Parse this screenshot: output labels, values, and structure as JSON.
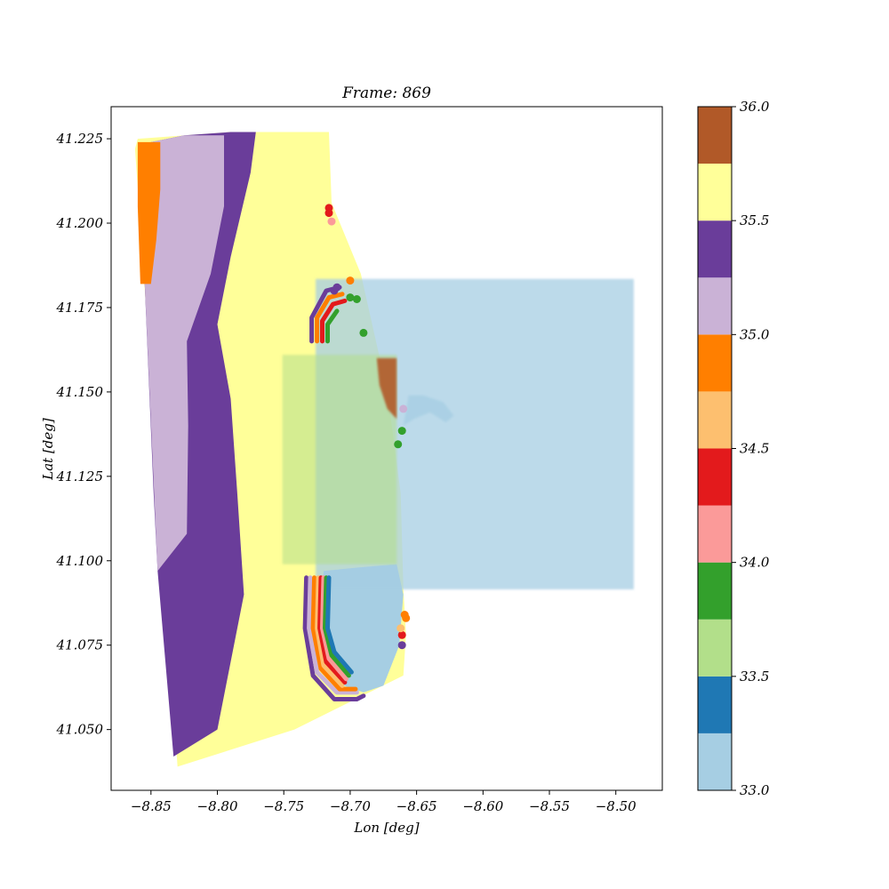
{
  "chart_data": {
    "type": "scatter",
    "title": "Frame: 869",
    "xlabel": "Lon [deg]",
    "ylabel": "Lat [deg]",
    "xlim": [
      -8.88,
      -8.465
    ],
    "ylim": [
      41.032,
      41.2345
    ],
    "x_ticks": [
      -8.85,
      -8.8,
      -8.75,
      -8.7,
      -8.65,
      -8.6,
      -8.55,
      -8.5
    ],
    "x_tick_labels": [
      "−8.85",
      "−8.80",
      "−8.75",
      "−8.70",
      "−8.65",
      "−8.60",
      "−8.55",
      "−8.50"
    ],
    "y_ticks": [
      41.05,
      41.075,
      41.1,
      41.125,
      41.15,
      41.175,
      41.2,
      41.225
    ],
    "y_tick_labels": [
      "41.050",
      "41.075",
      "41.100",
      "41.125",
      "41.150",
      "41.175",
      "41.200",
      "41.225"
    ],
    "grid": false,
    "colormap": "Paired",
    "colorbar": {
      "min": 33.0,
      "max": 36.0,
      "ticks": [
        33.0,
        33.5,
        34.0,
        34.5,
        35.0,
        35.5,
        36.0
      ],
      "tick_labels": [
        "33.0",
        "33.5",
        "34.0",
        "34.5",
        "35.0",
        "35.5",
        "36.0"
      ],
      "bins": [
        {
          "from": 33.0,
          "to": 33.25,
          "color": "#a6cee3"
        },
        {
          "from": 33.25,
          "to": 33.5,
          "color": "#1f78b4"
        },
        {
          "from": 33.5,
          "to": 33.75,
          "color": "#b2df8a"
        },
        {
          "from": 33.75,
          "to": 34.0,
          "color": "#33a02c"
        },
        {
          "from": 34.0,
          "to": 34.25,
          "color": "#fb9a99"
        },
        {
          "from": 34.25,
          "to": 34.5,
          "color": "#e31a1c"
        },
        {
          "from": 34.5,
          "to": 34.75,
          "color": "#fdbf6f"
        },
        {
          "from": 34.75,
          "to": 35.0,
          "color": "#ff7f00"
        },
        {
          "from": 35.0,
          "to": 35.25,
          "color": "#cab2d6"
        },
        {
          "from": 35.25,
          "to": 35.5,
          "color": "#6a3d9a"
        },
        {
          "from": 35.5,
          "to": 35.75,
          "color": "#ffff99"
        },
        {
          "from": 35.75,
          "to": 36.0,
          "color": "#b15928"
        }
      ]
    },
    "regions": [
      {
        "name": "offshore-yellow",
        "value": 35.6,
        "points": [
          [
            -8.83,
            41.039
          ],
          [
            -8.742,
            41.05
          ],
          [
            -8.66,
            41.066
          ],
          [
            -8.658,
            41.078
          ],
          [
            -8.66,
            41.092
          ],
          [
            -8.662,
            41.12
          ],
          [
            -8.672,
            41.15
          ],
          [
            -8.692,
            41.185
          ],
          [
            -8.714,
            41.206
          ],
          [
            -8.716,
            41.227
          ],
          [
            -8.79,
            41.227
          ],
          [
            -8.86,
            41.225
          ],
          [
            -8.862,
            41.222
          ]
        ]
      },
      {
        "name": "purple-band",
        "value": 35.4,
        "points": [
          [
            -8.833,
            41.042
          ],
          [
            -8.8,
            41.05
          ],
          [
            -8.78,
            41.09
          ],
          [
            -8.785,
            41.12
          ],
          [
            -8.79,
            41.148
          ],
          [
            -8.8,
            41.17
          ],
          [
            -8.79,
            41.19
          ],
          [
            -8.775,
            41.215
          ],
          [
            -8.771,
            41.227
          ],
          [
            -8.79,
            41.227
          ],
          [
            -8.825,
            41.226
          ],
          [
            -8.85,
            41.224
          ],
          [
            -8.858,
            41.222
          ],
          [
            -8.855,
            41.185
          ],
          [
            -8.848,
            41.12
          ],
          [
            -8.845,
            41.097
          ]
        ]
      },
      {
        "name": "lilac-band",
        "value": 35.1,
        "points": [
          [
            -8.845,
            41.097
          ],
          [
            -8.823,
            41.108
          ],
          [
            -8.822,
            41.14
          ],
          [
            -8.823,
            41.165
          ],
          [
            -8.805,
            41.185
          ],
          [
            -8.795,
            41.205
          ],
          [
            -8.795,
            41.226
          ],
          [
            -8.825,
            41.226
          ],
          [
            -8.85,
            41.224
          ],
          [
            -8.858,
            41.222
          ],
          [
            -8.855,
            41.185
          ]
        ]
      },
      {
        "name": "orange-band",
        "value": 34.9,
        "points": [
          [
            -8.858,
            41.182
          ],
          [
            -8.85,
            41.182
          ],
          [
            -8.846,
            41.195
          ],
          [
            -8.843,
            41.21
          ],
          [
            -8.843,
            41.224
          ],
          [
            -8.86,
            41.224
          ],
          [
            -8.86,
            41.205
          ]
        ]
      },
      {
        "name": "estuary-fresh",
        "value": 33.1,
        "points": [
          [
            -8.72,
            41.097
          ],
          [
            -8.694,
            41.098
          ],
          [
            -8.665,
            41.099
          ],
          [
            -8.66,
            41.09
          ],
          [
            -8.663,
            41.075
          ],
          [
            -8.675,
            41.063
          ],
          [
            -8.69,
            41.061
          ],
          [
            -8.705,
            41.063
          ],
          [
            -8.715,
            41.066
          ],
          [
            -8.722,
            41.077
          ]
        ]
      },
      {
        "name": "river-plume-box",
        "value": 33.1,
        "opacity": 0.75,
        "points": [
          [
            -8.726,
            41.0915
          ],
          [
            -8.4865,
            41.0915
          ],
          [
            -8.4865,
            41.1835
          ],
          [
            -8.726,
            41.1835
          ]
        ]
      },
      {
        "name": "nearshore-box",
        "value": 33.6,
        "opacity": 0.55,
        "points": [
          [
            -8.751,
            41.099
          ],
          [
            -8.665,
            41.099
          ],
          [
            -8.665,
            41.161
          ],
          [
            -8.751,
            41.161
          ]
        ]
      },
      {
        "name": "brown-patch",
        "value": 35.9,
        "opacity": 0.9,
        "points": [
          [
            -8.68,
            41.16
          ],
          [
            -8.665,
            41.16
          ],
          [
            -8.665,
            41.142
          ],
          [
            -8.672,
            41.145
          ],
          [
            -8.678,
            41.152
          ]
        ]
      },
      {
        "name": "river-channel",
        "value": 33.1,
        "opacity": 0.8,
        "points": [
          [
            -8.656,
            41.149
          ],
          [
            -8.645,
            41.149
          ],
          [
            -8.63,
            41.147
          ],
          [
            -8.622,
            41.143
          ],
          [
            -8.628,
            41.141
          ],
          [
            -8.64,
            41.144
          ],
          [
            -8.652,
            41.142
          ],
          [
            -8.66,
            41.14
          ]
        ]
      }
    ],
    "fronts": [
      {
        "value": 35.4,
        "points": [
          [
            -8.733,
            41.095
          ],
          [
            -8.734,
            41.08
          ],
          [
            -8.728,
            41.066
          ],
          [
            -8.712,
            41.059
          ],
          [
            -8.695,
            41.059
          ],
          [
            -8.69,
            41.06
          ]
        ]
      },
      {
        "value": 35.1,
        "points": [
          [
            -8.73,
            41.095
          ],
          [
            -8.731,
            41.08
          ],
          [
            -8.725,
            41.067
          ],
          [
            -8.71,
            41.061
          ],
          [
            -8.695,
            41.061
          ]
        ]
      },
      {
        "value": 34.9,
        "points": [
          [
            -8.727,
            41.095
          ],
          [
            -8.728,
            41.08
          ],
          [
            -8.722,
            41.068
          ],
          [
            -8.708,
            41.062
          ],
          [
            -8.696,
            41.062
          ]
        ]
      },
      {
        "value": 34.6,
        "points": [
          [
            -8.724,
            41.095
          ],
          [
            -8.725,
            41.08
          ],
          [
            -8.72,
            41.069
          ],
          [
            -8.706,
            41.063
          ]
        ]
      },
      {
        "value": 34.4,
        "points": [
          [
            -8.722,
            41.095
          ],
          [
            -8.723,
            41.08
          ],
          [
            -8.718,
            41.07
          ],
          [
            -8.704,
            41.064
          ]
        ]
      },
      {
        "value": 34.1,
        "points": [
          [
            -8.72,
            41.095
          ],
          [
            -8.721,
            41.08
          ],
          [
            -8.716,
            41.071
          ],
          [
            -8.703,
            41.065
          ]
        ]
      },
      {
        "value": 33.9,
        "points": [
          [
            -8.718,
            41.095
          ],
          [
            -8.719,
            41.08
          ],
          [
            -8.714,
            41.072
          ],
          [
            -8.701,
            41.066
          ]
        ]
      },
      {
        "value": 33.4,
        "points": [
          [
            -8.716,
            41.095
          ],
          [
            -8.717,
            41.08
          ],
          [
            -8.712,
            41.073
          ],
          [
            -8.699,
            41.067
          ]
        ]
      },
      {
        "value": 35.4,
        "points": [
          [
            -8.729,
            41.165
          ],
          [
            -8.729,
            41.172
          ],
          [
            -8.718,
            41.18
          ],
          [
            -8.708,
            41.181
          ]
        ]
      },
      {
        "value": 34.9,
        "points": [
          [
            -8.725,
            41.165
          ],
          [
            -8.725,
            41.172
          ],
          [
            -8.716,
            41.178
          ],
          [
            -8.706,
            41.179
          ]
        ]
      },
      {
        "value": 34.4,
        "points": [
          [
            -8.721,
            41.165
          ],
          [
            -8.721,
            41.171
          ],
          [
            -8.713,
            41.176
          ],
          [
            -8.704,
            41.177
          ]
        ]
      },
      {
        "value": 33.9,
        "points": [
          [
            -8.717,
            41.165
          ],
          [
            -8.717,
            41.17
          ],
          [
            -8.71,
            41.174
          ]
        ]
      }
    ],
    "points": [
      {
        "x": -8.716,
        "y": 41.2045,
        "value": 34.4
      },
      {
        "x": -8.716,
        "y": 41.203,
        "value": 34.4
      },
      {
        "x": -8.714,
        "y": 41.2005,
        "value": 34.1
      },
      {
        "x": -8.7,
        "y": 41.183,
        "value": 34.9
      },
      {
        "x": -8.712,
        "y": 41.18,
        "value": 35.4
      },
      {
        "x": -8.71,
        "y": 41.181,
        "value": 35.4
      },
      {
        "x": -8.7,
        "y": 41.178,
        "value": 33.9
      },
      {
        "x": -8.695,
        "y": 41.1775,
        "value": 33.9
      },
      {
        "x": -8.69,
        "y": 41.1675,
        "value": 33.9
      },
      {
        "x": -8.661,
        "y": 41.1385,
        "value": 33.9
      },
      {
        "x": -8.664,
        "y": 41.1345,
        "value": 33.9
      },
      {
        "x": -8.66,
        "y": 41.145,
        "value": 35.1
      },
      {
        "x": -8.659,
        "y": 41.084,
        "value": 34.9
      },
      {
        "x": -8.658,
        "y": 41.083,
        "value": 34.9
      },
      {
        "x": -8.661,
        "y": 41.078,
        "value": 34.4
      },
      {
        "x": -8.661,
        "y": 41.075,
        "value": 35.4
      },
      {
        "x": -8.662,
        "y": 41.08,
        "value": 34.6
      }
    ]
  }
}
